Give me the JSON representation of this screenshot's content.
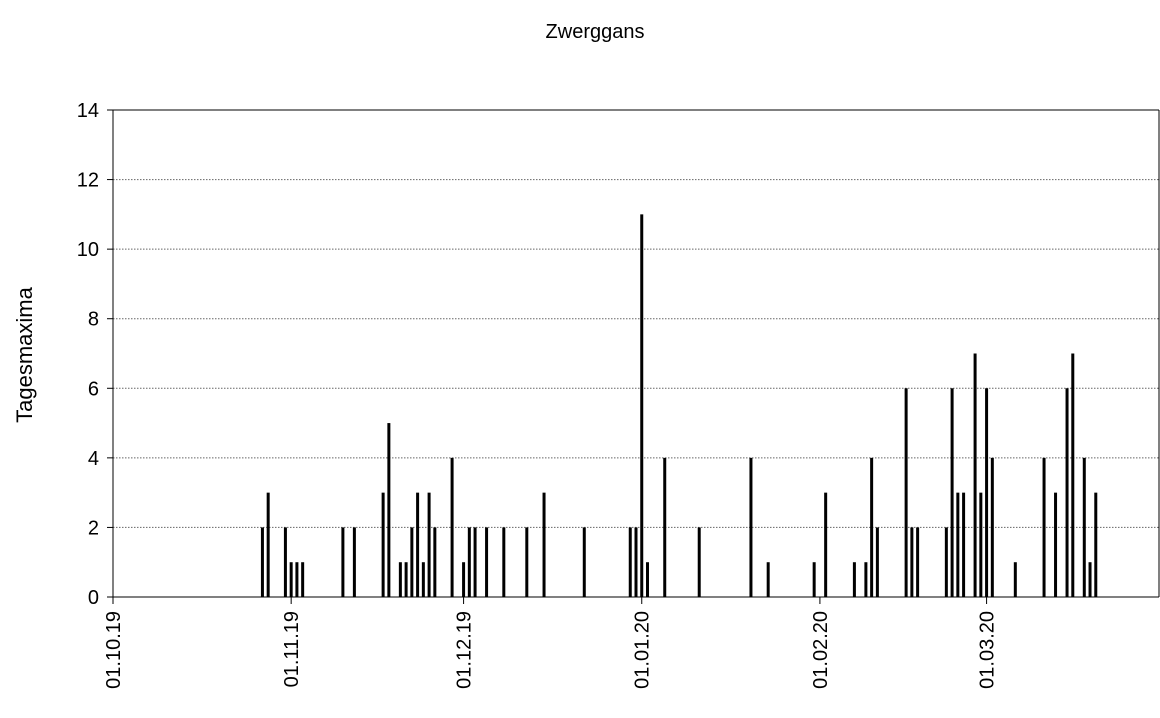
{
  "chart_data": {
    "type": "bar",
    "title": "Zwerggans",
    "y_label": "Tagesmaxima",
    "color": "#000000",
    "grid": true,
    "x": [
      "27.10.19",
      "28.10.19",
      "31.10.19",
      "01.11.19",
      "02.11.19",
      "03.11.19",
      "10.11.19",
      "12.11.19",
      "17.11.19",
      "18.11.19",
      "20.11.19",
      "21.11.19",
      "22.11.19",
      "23.11.19",
      "24.11.19",
      "25.11.19",
      "26.11.19",
      "29.11.19",
      "01.12.19",
      "02.12.19",
      "03.12.19",
      "05.12.19",
      "08.12.19",
      "12.12.19",
      "15.12.19",
      "22.12.19",
      "30.12.19",
      "31.12.19",
      "01.01.20",
      "02.01.20",
      "05.01.20",
      "11.01.20",
      "20.01.20",
      "23.01.20",
      "31.01.20",
      "02.02.20",
      "07.02.20",
      "09.02.20",
      "10.02.20",
      "11.02.20",
      "16.02.20",
      "17.02.20",
      "18.02.20",
      "23.02.20",
      "24.02.20",
      "25.02.20",
      "26.02.20",
      "28.02.20",
      "29.02.20",
      "01.03.20",
      "02.03.20",
      "06.03.20",
      "11.03.20",
      "13.03.20",
      "15.03.20",
      "16.03.20",
      "18.03.20",
      "19.03.20",
      "20.03.20"
    ],
    "values": [
      2,
      3,
      2,
      1,
      1,
      1,
      2,
      2,
      3,
      5,
      1,
      1,
      2,
      3,
      1,
      3,
      2,
      4,
      1,
      2,
      2,
      2,
      2,
      2,
      3,
      2,
      2,
      2,
      11,
      1,
      4,
      2,
      4,
      1,
      1,
      3,
      1,
      1,
      4,
      2,
      6,
      2,
      2,
      2,
      6,
      3,
      3,
      7,
      3,
      6,
      4,
      1,
      4,
      3,
      6,
      7,
      4,
      1,
      3
    ],
    "xlim": [
      "01.10.19",
      "31.03.20"
    ],
    "xticks": [
      "01.10.19",
      "01.11.19",
      "01.12.19",
      "01.01.20",
      "01.02.20",
      "01.03.20"
    ],
    "ylim": [
      0,
      14
    ],
    "yticks": [
      0,
      2,
      4,
      6,
      8,
      10,
      12,
      14
    ]
  }
}
